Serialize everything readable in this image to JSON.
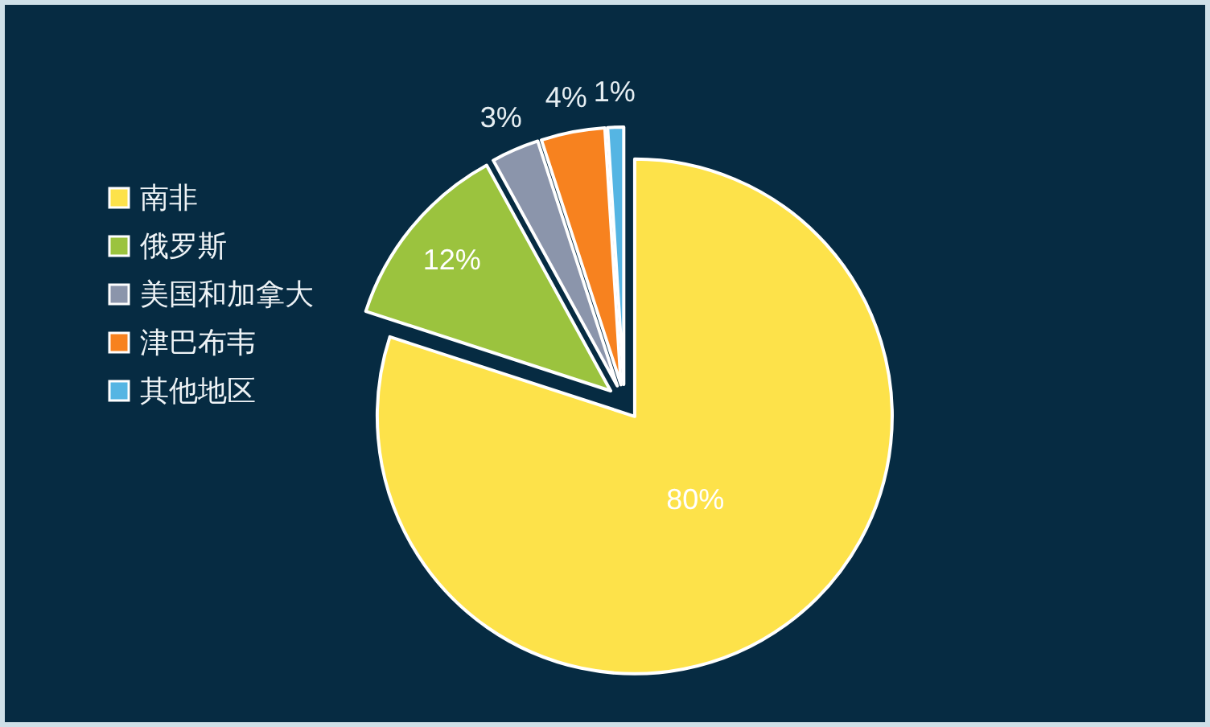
{
  "chart_data": {
    "type": "pie",
    "categories": [
      "南非",
      "俄罗斯",
      "美国和加拿大",
      "津巴布韦",
      "其他地区"
    ],
    "values": [
      80,
      12,
      3,
      4,
      1
    ],
    "colors": [
      "#fde24a",
      "#9bc33e",
      "#8b95ab",
      "#f7821f",
      "#55b5e3"
    ],
    "value_labels": [
      "80%",
      "12%",
      "3%",
      "4%",
      "1%"
    ],
    "legend": "left"
  }
}
